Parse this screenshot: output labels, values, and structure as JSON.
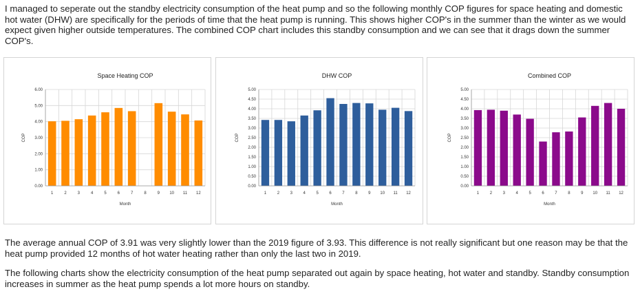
{
  "article": {
    "intro": "I managed to seperate out the standby electricity consumption of the heat pump and so the following monthly COP figures for space heating and domestic hot water (DHW) are specifically for the periods of time that the heat pump is running. This shows higher COP's in the summer than the winter as we would expect given higher outside temperatures. The combined COP chart includes this standby consumption and we can see that it drags down the summer COP's.",
    "summary": "The average annual COP of 3.91 was very slightly lower than the 2019 figure of 3.93. This difference is not really significant but one reason may be that the heat pump provided 12 months of hot water heating rather than only the last two in 2019.",
    "outro": "The following charts show the electricity consumption of the heat pump separated out again by space heating, hot water and standby. Standby consumption increases in summer as the heat pump spends a lot more hours on standby."
  },
  "chart_data": [
    {
      "type": "bar",
      "title": "Space Heating COP",
      "xlabel": "Month",
      "ylabel": "COP",
      "categories": [
        "1",
        "2",
        "3",
        "4",
        "5",
        "6",
        "7",
        "8",
        "9",
        "10",
        "11",
        "12"
      ],
      "values": [
        4.02,
        4.05,
        4.15,
        4.38,
        4.58,
        4.85,
        4.65,
        null,
        5.15,
        4.62,
        4.45,
        4.07
      ],
      "ylim": [
        0,
        6
      ],
      "yticks": [
        "0.00",
        "1.00",
        "2.00",
        "3.00",
        "4.00",
        "5.00",
        "6.00"
      ],
      "color": "#ff8c00",
      "grid": true
    },
    {
      "type": "bar",
      "title": "DHW COP",
      "xlabel": "Month",
      "ylabel": "COP",
      "categories": [
        "1",
        "2",
        "3",
        "4",
        "5",
        "6",
        "7",
        "8",
        "9",
        "10",
        "11",
        "12"
      ],
      "values": [
        3.42,
        3.42,
        3.35,
        3.65,
        3.92,
        4.55,
        4.25,
        4.3,
        4.28,
        3.95,
        4.05,
        3.88
      ],
      "ylim": [
        0,
        5
      ],
      "yticks": [
        "0.00",
        "0.50",
        "1.00",
        "1.50",
        "2.00",
        "2.50",
        "3.00",
        "3.50",
        "4.00",
        "4.50",
        "5.00"
      ],
      "color": "#2e5e9c",
      "grid": true
    },
    {
      "type": "bar",
      "title": "Combined COP",
      "xlabel": "Month",
      "ylabel": "COP",
      "categories": [
        "1",
        "2",
        "3",
        "4",
        "5",
        "6",
        "7",
        "8",
        "9",
        "10",
        "11",
        "12"
      ],
      "values": [
        3.93,
        3.95,
        3.9,
        3.7,
        3.48,
        2.3,
        2.78,
        2.82,
        3.55,
        4.15,
        4.3,
        4.0
      ],
      "ylim": [
        0,
        5
      ],
      "yticks": [
        "0.00",
        "0.50",
        "1.00",
        "1.50",
        "2.00",
        "2.50",
        "3.00",
        "3.50",
        "4.00",
        "4.50",
        "5.00"
      ],
      "color": "#8b0a8b",
      "grid": true
    }
  ]
}
